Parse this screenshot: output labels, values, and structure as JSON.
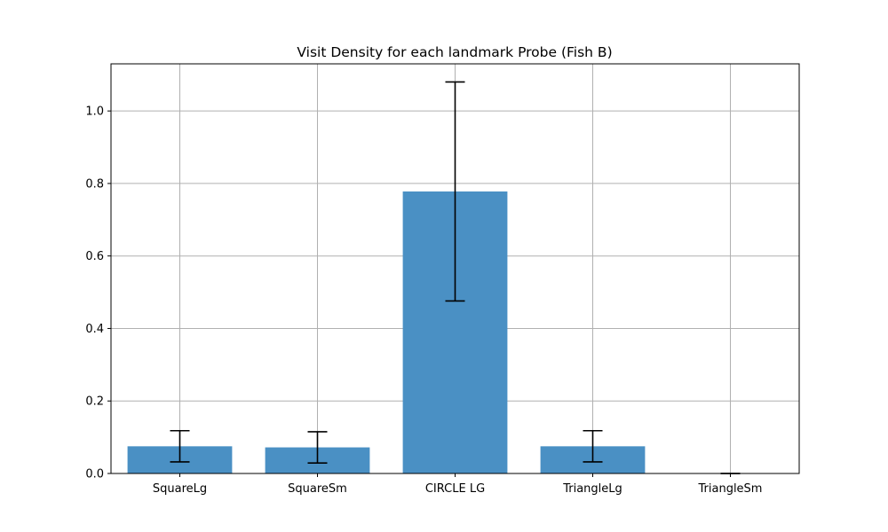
{
  "chart_data": {
    "type": "bar",
    "title": "Visit Density for each landmark Probe (Fish B)",
    "xlabel": "",
    "ylabel": "",
    "categories": [
      "SquareLg",
      "SquareSm",
      "CIRCLE LG",
      "TriangleLg",
      "TriangleSm"
    ],
    "values": [
      0.075,
      0.072,
      0.778,
      0.075,
      0.0
    ],
    "error": [
      0.043,
      0.043,
      0.302,
      0.043,
      0.0
    ],
    "ylim": [
      0.0,
      1.13
    ],
    "yticks": [
      0.0,
      0.2,
      0.4,
      0.6,
      0.8,
      1.0
    ],
    "ytick_labels": [
      "0.0",
      "0.2",
      "0.4",
      "0.6",
      "0.8",
      "1.0"
    ],
    "grid": true,
    "legend": "none",
    "bar_color": "#4a90c4",
    "errorbar_color": "#000000",
    "grid_color": "#b0b0b0"
  }
}
